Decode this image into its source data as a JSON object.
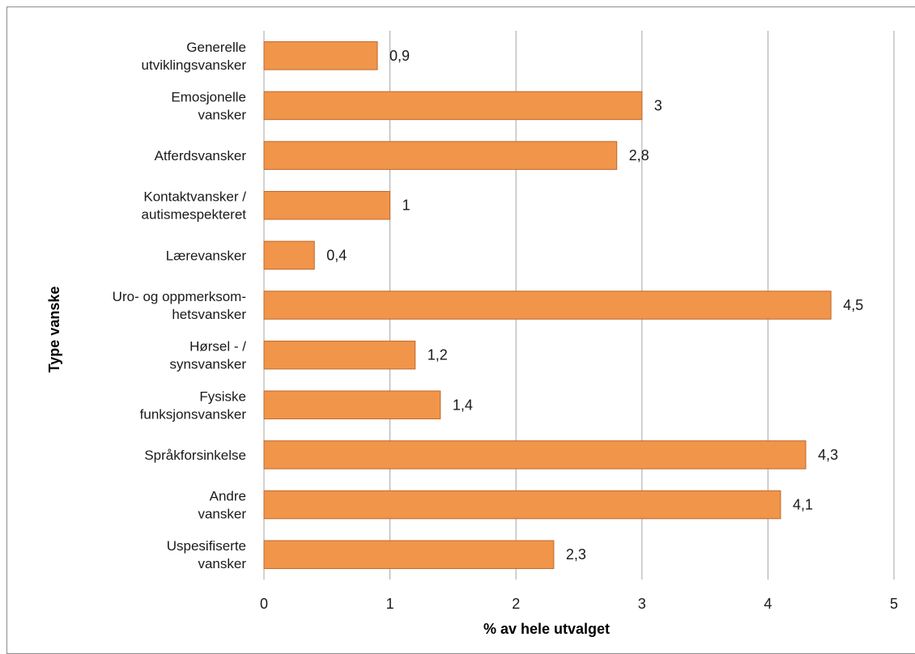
{
  "chart_data": {
    "type": "bar",
    "orientation": "horizontal",
    "categories": [
      [
        "Generelle",
        "utviklingsvansker"
      ],
      [
        "Emosjonelle",
        "vansker"
      ],
      [
        "Atferdsvansker"
      ],
      [
        "Kontaktvansker /",
        "autismespekteret"
      ],
      [
        "Lærevansker"
      ],
      [
        "Uro- og oppmerksom-",
        "hetsvansker"
      ],
      [
        "Hørsel - /",
        "synsvansker"
      ],
      [
        "Fysiske",
        "funksjonsvansker"
      ],
      [
        "Språkforsinkelse"
      ],
      [
        "Andre",
        "vansker"
      ],
      [
        "Uspesifiserte",
        "vansker"
      ]
    ],
    "values": [
      0.9,
      3,
      2.8,
      1,
      0.4,
      4.5,
      1.2,
      1.4,
      4.3,
      4.1,
      2.3
    ],
    "value_labels": [
      "0,9",
      "3",
      "2,8",
      "1",
      "0,4",
      "4,5",
      "1,2",
      "1,4",
      "4,3",
      "4,1",
      "2,3"
    ],
    "xlabel": "% av hele utvalget",
    "ylabel": "Type vanske",
    "xlim": [
      0,
      5
    ],
    "xticks": [
      "0",
      "1",
      "2",
      "3",
      "4",
      "5"
    ],
    "grid": "vertical",
    "legend": "none",
    "bar_color": "#f0954a",
    "bar_edge_color": "#c0682a",
    "grid_color": "#a6a6a6"
  }
}
